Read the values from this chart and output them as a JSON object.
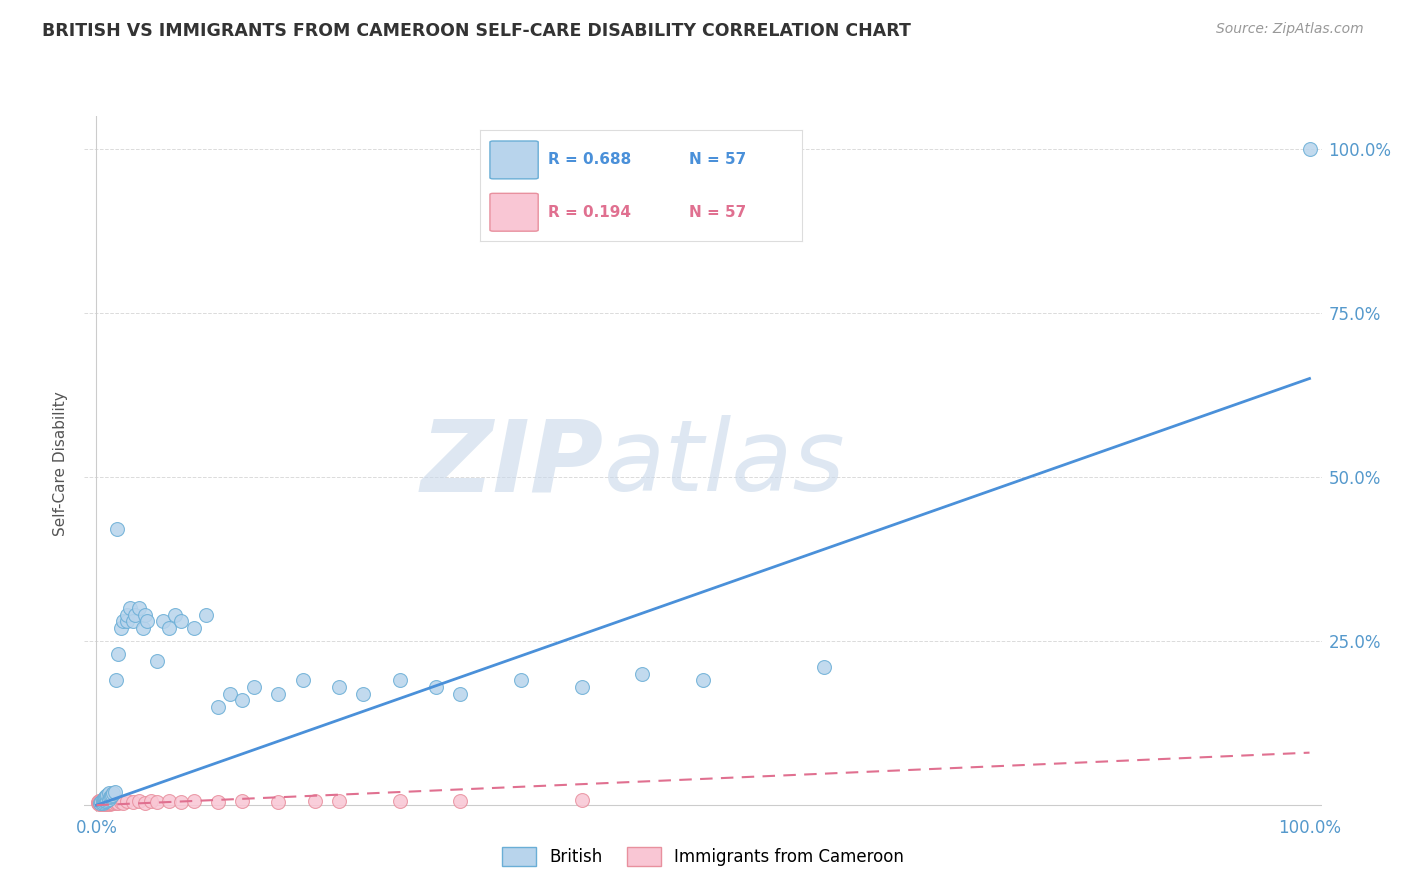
{
  "title": "BRITISH VS IMMIGRANTS FROM CAMEROON SELF-CARE DISABILITY CORRELATION CHART",
  "source": "Source: ZipAtlas.com",
  "ylabel": "Self-Care Disability",
  "british_R": 0.688,
  "cameroon_R": 0.194,
  "N": 57,
  "british_color": "#b8d4ec",
  "british_edge_color": "#6aaed6",
  "british_line_color": "#4a90d9",
  "cameroon_color": "#f9c6d4",
  "cameroon_edge_color": "#e8909e",
  "cameroon_line_color": "#e07090",
  "grid_color": "#cccccc",
  "background_color": "#ffffff",
  "title_color": "#333333",
  "source_color": "#999999",
  "british_x": [
    0.003,
    0.004,
    0.005,
    0.005,
    0.006,
    0.006,
    0.007,
    0.007,
    0.008,
    0.008,
    0.009,
    0.009,
    0.01,
    0.01,
    0.011,
    0.012,
    0.013,
    0.014,
    0.015,
    0.016,
    0.017,
    0.018,
    0.02,
    0.022,
    0.025,
    0.025,
    0.028,
    0.03,
    0.032,
    0.035,
    0.038,
    0.04,
    0.042,
    0.05,
    0.055,
    0.06,
    0.065,
    0.07,
    0.08,
    0.09,
    0.1,
    0.11,
    0.12,
    0.13,
    0.15,
    0.17,
    0.2,
    0.22,
    0.25,
    0.28,
    0.3,
    0.35,
    0.4,
    0.45,
    0.5,
    0.6,
    1.0
  ],
  "british_y": [
    0.003,
    0.005,
    0.004,
    0.008,
    0.005,
    0.01,
    0.006,
    0.012,
    0.007,
    0.014,
    0.008,
    0.016,
    0.01,
    0.018,
    0.012,
    0.014,
    0.016,
    0.018,
    0.02,
    0.19,
    0.42,
    0.23,
    0.27,
    0.28,
    0.28,
    0.29,
    0.3,
    0.28,
    0.29,
    0.3,
    0.27,
    0.29,
    0.28,
    0.22,
    0.28,
    0.27,
    0.29,
    0.28,
    0.27,
    0.29,
    0.15,
    0.17,
    0.16,
    0.18,
    0.17,
    0.19,
    0.18,
    0.17,
    0.19,
    0.18,
    0.17,
    0.19,
    0.18,
    0.2,
    0.19,
    0.21,
    1.0
  ],
  "cameroon_x": [
    0.001,
    0.001,
    0.002,
    0.002,
    0.002,
    0.003,
    0.003,
    0.003,
    0.004,
    0.004,
    0.004,
    0.005,
    0.005,
    0.005,
    0.005,
    0.006,
    0.006,
    0.006,
    0.007,
    0.007,
    0.007,
    0.008,
    0.008,
    0.008,
    0.009,
    0.009,
    0.01,
    0.01,
    0.011,
    0.011,
    0.012,
    0.012,
    0.013,
    0.014,
    0.015,
    0.016,
    0.017,
    0.018,
    0.02,
    0.022,
    0.025,
    0.03,
    0.035,
    0.04,
    0.045,
    0.05,
    0.06,
    0.07,
    0.08,
    0.1,
    0.12,
    0.15,
    0.18,
    0.2,
    0.25,
    0.3,
    0.4
  ],
  "cameroon_y": [
    0.003,
    0.005,
    0.002,
    0.004,
    0.006,
    0.003,
    0.005,
    0.007,
    0.002,
    0.004,
    0.006,
    0.002,
    0.004,
    0.006,
    0.008,
    0.003,
    0.005,
    0.007,
    0.002,
    0.004,
    0.006,
    0.003,
    0.005,
    0.007,
    0.002,
    0.004,
    0.003,
    0.005,
    0.002,
    0.004,
    0.003,
    0.005,
    0.004,
    0.003,
    0.005,
    0.004,
    0.005,
    0.004,
    0.005,
    0.004,
    0.006,
    0.005,
    0.006,
    0.004,
    0.006,
    0.005,
    0.006,
    0.005,
    0.006,
    0.005,
    0.007,
    0.005,
    0.007,
    0.006,
    0.007,
    0.006,
    0.008
  ],
  "xlim": [
    -0.01,
    1.01
  ],
  "ylim": [
    -0.01,
    1.05
  ],
  "yticks": [
    0.0,
    0.25,
    0.5,
    0.75,
    1.0
  ],
  "ytick_labels": [
    "",
    "25.0%",
    "50.0%",
    "75.0%",
    "100.0%"
  ],
  "xtick_labels_ends": [
    "0.0%",
    "100.0%"
  ],
  "british_trend_y0": 0.0,
  "british_trend_y1": 0.65,
  "cameroon_trend_y0": 0.0,
  "cameroon_trend_y1": 0.08
}
